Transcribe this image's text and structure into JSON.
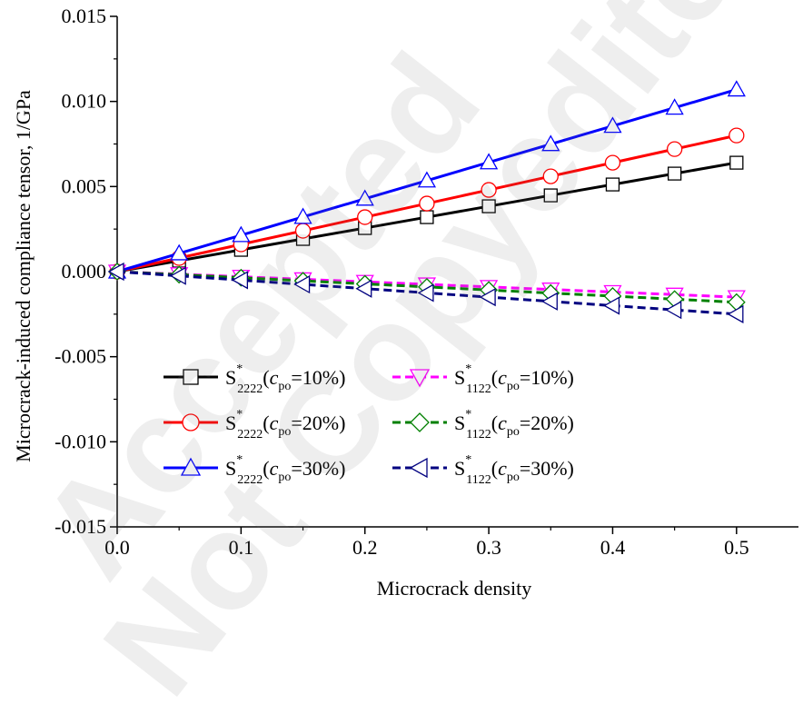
{
  "watermarks": [
    "Accepted",
    "Not Copyedited"
  ],
  "chart_data": {
    "type": "line",
    "xlabel": "Microcrack density",
    "ylabel": "Microcrack-induced compliance tensor, 1/GPa",
    "xlim": [
      0.0,
      0.55
    ],
    "ylim": [
      -0.015,
      0.015
    ],
    "xticks": [
      "0.0",
      "0.1",
      "0.2",
      "0.3",
      "0.4",
      "0.5"
    ],
    "yticks": [
      "-0.015",
      "-0.010",
      "-0.005",
      "0.000",
      "0.005",
      "0.010",
      "0.015"
    ],
    "legend_position": "lower-center (inside plot)",
    "x": [
      0.0,
      0.05,
      0.1,
      0.15,
      0.2,
      0.25,
      0.3,
      0.35,
      0.4,
      0.45,
      0.5
    ],
    "series": [
      {
        "label_main": "S",
        "label_sup": "*",
        "label_sub": "2222",
        "label_param": "c",
        "label_param_sub": "po",
        "label_value": "=10%)",
        "color": "#000000",
        "dash": "solid",
        "marker": "square",
        "values": [
          0.0,
          0.00064,
          0.00128,
          0.00192,
          0.00256,
          0.0032,
          0.00384,
          0.00448,
          0.00512,
          0.00576,
          0.0064
        ]
      },
      {
        "label_main": "S",
        "label_sup": "*",
        "label_sub": "2222",
        "label_param": "c",
        "label_param_sub": "po",
        "label_value": "=20%)",
        "color": "#ff0000",
        "dash": "solid",
        "marker": "circle",
        "values": [
          0.0,
          0.0008,
          0.0016,
          0.0024,
          0.0032,
          0.004,
          0.0048,
          0.0056,
          0.0064,
          0.0072,
          0.008
        ]
      },
      {
        "label_main": "S",
        "label_sup": "*",
        "label_sub": "2222",
        "label_param": "c",
        "label_param_sub": "po",
        "label_value": "=30%)",
        "color": "#0000ff",
        "dash": "solid",
        "marker": "triangle-up",
        "values": [
          0.0,
          0.00107,
          0.00214,
          0.00321,
          0.00428,
          0.00535,
          0.00642,
          0.00749,
          0.00856,
          0.00963,
          0.0107
        ]
      },
      {
        "label_main": "S",
        "label_sup": "*",
        "label_sub": "1122",
        "label_param": "c",
        "label_param_sub": "po",
        "label_value": "=10%)",
        "color": "#ff00ff",
        "dash": "dashed",
        "marker": "triangle-down",
        "values": [
          0.0,
          -0.00015,
          -0.0003,
          -0.00045,
          -0.0006,
          -0.00075,
          -0.0009,
          -0.00105,
          -0.0012,
          -0.00135,
          -0.0015
        ]
      },
      {
        "label_main": "S",
        "label_sup": "*",
        "label_sub": "1122",
        "label_param": "c",
        "label_param_sub": "po",
        "label_value": "=20%)",
        "color": "#008000",
        "dash": "dashed",
        "marker": "diamond",
        "values": [
          0.0,
          -0.00018,
          -0.00036,
          -0.00054,
          -0.00072,
          -0.0009,
          -0.00108,
          -0.00126,
          -0.00144,
          -0.00162,
          -0.0018
        ]
      },
      {
        "label_main": "S",
        "label_sup": "*",
        "label_sub": "1122",
        "label_param": "c",
        "label_param_sub": "po",
        "label_value": "=30%)",
        "color": "#000080",
        "dash": "dashed",
        "marker": "triangle-left",
        "values": [
          0.0,
          -0.00025,
          -0.0005,
          -0.00075,
          -0.001,
          -0.00125,
          -0.0015,
          -0.00175,
          -0.002,
          -0.00225,
          -0.0025
        ]
      }
    ]
  }
}
